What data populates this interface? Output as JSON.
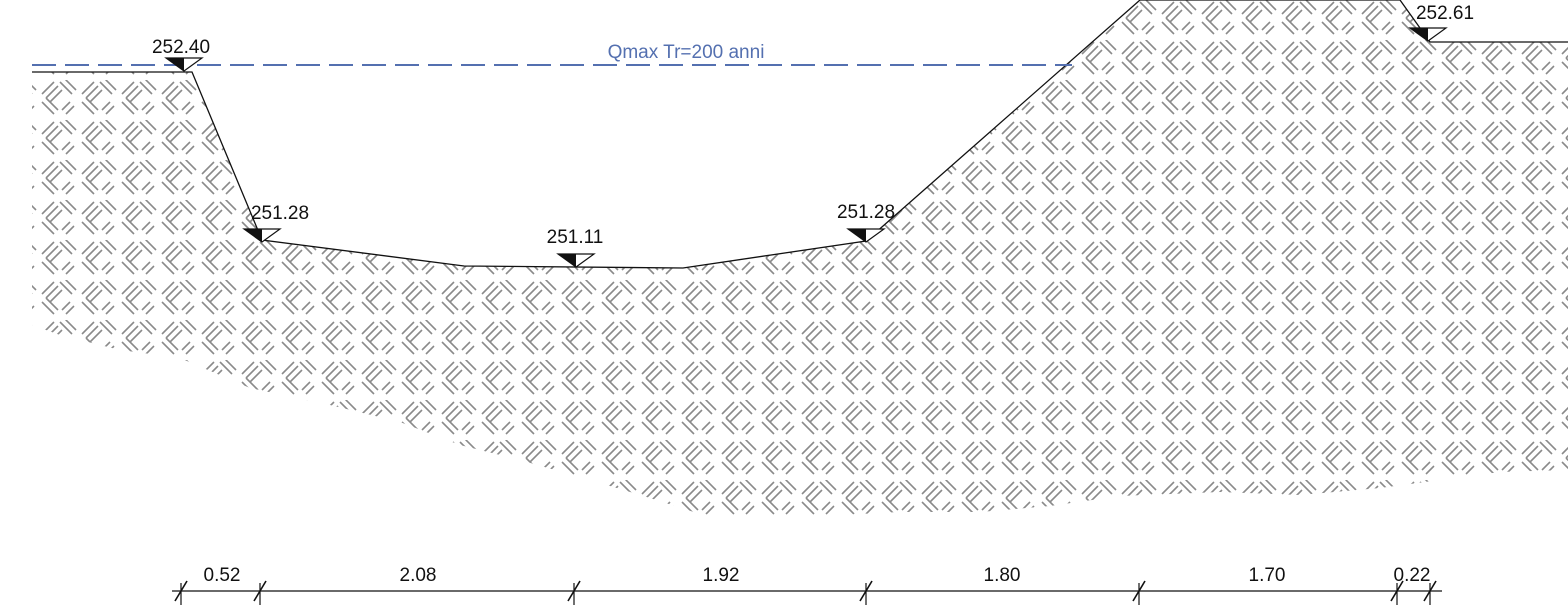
{
  "section": {
    "water_level_label": "Qmax Tr=200 anni",
    "elevations": [
      {
        "key": "left-bank-top",
        "label": "252.40"
      },
      {
        "key": "left-toe",
        "label": "251.28"
      },
      {
        "key": "channel-bottom",
        "label": "251.11"
      },
      {
        "key": "right-toe",
        "label": "251.28"
      },
      {
        "key": "right-bank-top",
        "label": "252.61"
      }
    ],
    "dimensions": [
      "0.52",
      "2.08",
      "1.92",
      "1.80",
      "1.70",
      "0.22"
    ]
  },
  "colors": {
    "water_line": "#5470b0",
    "hatch": "#8a8a8a",
    "outline": "#111111"
  }
}
